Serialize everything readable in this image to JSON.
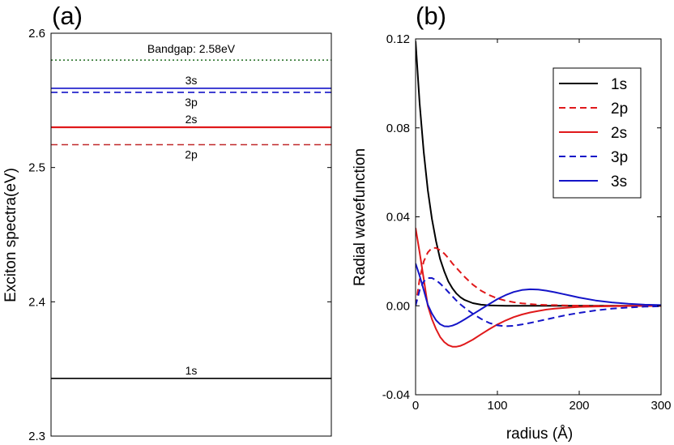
{
  "panel_a_label": "(a)",
  "panel_b_label": "(b)",
  "chart_data": [
    {
      "type": "line",
      "title": "",
      "xlabel": "",
      "ylabel": "Exciton spectra(eV)",
      "ylim": [
        2.3,
        2.6
      ],
      "yticks": [
        "2.3",
        "2.4",
        "2.5",
        "2.6"
      ],
      "grid": false,
      "levels": [
        {
          "name": "Bandgap",
          "label": "Bandgap: 2.58eV",
          "value": 2.58,
          "color": "#1e6b1e",
          "style": "dotted"
        },
        {
          "name": "3s",
          "label": "3s",
          "value": 2.559,
          "color": "#1414c8",
          "style": "solid"
        },
        {
          "name": "3p",
          "label": "3p",
          "value": 2.556,
          "color": "#1414c8",
          "style": "dashed"
        },
        {
          "name": "2s",
          "label": "2s",
          "value": 2.53,
          "color": "#e0191b",
          "style": "solid"
        },
        {
          "name": "2p",
          "label": "2p",
          "value": 2.517,
          "color": "#c0282a",
          "style": "dashed"
        },
        {
          "name": "1s",
          "label": "1s",
          "value": 2.343,
          "color": "#000000",
          "style": "solid"
        }
      ]
    },
    {
      "type": "line",
      "title": "",
      "xlabel": "radius (Å)",
      "ylabel": "Radial wavefunction",
      "xlim": [
        0,
        300
      ],
      "ylim": [
        -0.04,
        0.12
      ],
      "xticks": [
        "0",
        "100",
        "200",
        "300"
      ],
      "yticks": [
        "-0.04",
        "0.00",
        "0.04",
        "0.08",
        "0.12"
      ],
      "grid": false,
      "legend_position": "top-right",
      "x": [
        0,
        5,
        10,
        15,
        20,
        25,
        30,
        35,
        40,
        45,
        50,
        55,
        60,
        70,
        80,
        90,
        100,
        110,
        120,
        130,
        140,
        150,
        160,
        170,
        180,
        190,
        200,
        220,
        240,
        260,
        280,
        300
      ],
      "series": [
        {
          "name": "1s",
          "color": "#000000",
          "style": "solid",
          "values": [
            0.119,
            0.091,
            0.069,
            0.052,
            0.039,
            0.029,
            0.021,
            0.0155,
            0.011,
            0.0078,
            0.0055,
            0.0038,
            0.0026,
            0.0012,
            0.0005,
            0.0002,
            0.0001,
            0.0,
            0.0,
            0.0,
            0.0,
            0.0,
            0.0,
            0.0,
            0.0,
            0.0,
            0.0,
            0.0,
            0.0,
            0.0,
            0.0,
            0.0
          ]
        },
        {
          "name": "2p",
          "color": "#e0191b",
          "style": "dashed",
          "values": [
            0.0,
            0.012,
            0.02,
            0.024,
            0.026,
            0.026,
            0.025,
            0.0235,
            0.0215,
            0.019,
            0.017,
            0.015,
            0.013,
            0.0095,
            0.0068,
            0.0048,
            0.0033,
            0.0023,
            0.0016,
            0.0011,
            0.0008,
            0.0005,
            0.0004,
            0.0003,
            0.0002,
            0.0001,
            0.0001,
            0.0,
            0.0,
            0.0,
            0.0,
            0.0
          ]
        },
        {
          "name": "2s",
          "color": "#e0191b",
          "style": "solid",
          "values": [
            0.035,
            0.024,
            0.012,
            0.0,
            -0.006,
            -0.0105,
            -0.014,
            -0.0163,
            -0.0177,
            -0.0184,
            -0.0184,
            -0.018,
            -0.0172,
            -0.0152,
            -0.0128,
            -0.0105,
            -0.0084,
            -0.0066,
            -0.0051,
            -0.0039,
            -0.003,
            -0.0023,
            -0.0017,
            -0.0013,
            -0.001,
            -0.0007,
            -0.0005,
            -0.0003,
            -0.0002,
            -0.0001,
            0.0,
            0.0
          ]
        },
        {
          "name": "3p",
          "color": "#1414c8",
          "style": "dashed",
          "values": [
            0.0,
            0.007,
            0.011,
            0.0125,
            0.0125,
            0.0115,
            0.01,
            0.0082,
            0.0062,
            0.0042,
            0.0023,
            0.0006,
            -0.0009,
            -0.0036,
            -0.0059,
            -0.0077,
            -0.0088,
            -0.0092,
            -0.009,
            -0.0084,
            -0.0077,
            -0.0069,
            -0.0061,
            -0.0053,
            -0.0045,
            -0.0038,
            -0.0032,
            -0.0021,
            -0.0013,
            -0.0008,
            -0.0004,
            -0.0002
          ]
        },
        {
          "name": "3s",
          "color": "#1414c8",
          "style": "solid",
          "values": [
            0.019,
            0.0135,
            0.007,
            0.0005,
            -0.0035,
            -0.0065,
            -0.0083,
            -0.0092,
            -0.0093,
            -0.0089,
            -0.0082,
            -0.0072,
            -0.0061,
            -0.0038,
            -0.0015,
            0.0008,
            0.003,
            0.0048,
            0.0062,
            0.0071,
            0.0074,
            0.0073,
            0.0068,
            0.0061,
            0.0053,
            0.0045,
            0.0037,
            0.0024,
            0.0015,
            0.0009,
            0.0005,
            0.0003
          ]
        }
      ]
    }
  ]
}
